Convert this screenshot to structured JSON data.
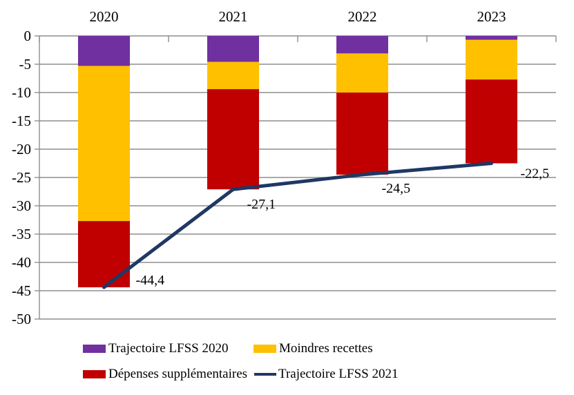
{
  "chart_data": {
    "type": "bar",
    "stacked": true,
    "orientation": "vertical",
    "categories": [
      "2020",
      "2021",
      "2022",
      "2023"
    ],
    "series": [
      {
        "name": "Trajectoire LFSS 2020",
        "type": "bar",
        "color": "#7030A0",
        "values": [
          -5.3,
          -4.6,
          -3.1,
          -0.7
        ]
      },
      {
        "name": "Moindres recettes",
        "type": "bar",
        "color": "#FFC000",
        "values": [
          -27.4,
          -4.8,
          -6.9,
          -7.0
        ]
      },
      {
        "name": "Dépenses supplémentaires",
        "type": "bar",
        "color": "#C00000",
        "values": [
          -11.7,
          -17.7,
          -14.5,
          -14.8
        ]
      },
      {
        "name": "Trajectoire LFSS 2021",
        "type": "line",
        "color": "#1F3864",
        "values": [
          -44.4,
          -27.1,
          -24.5,
          -22.5
        ],
        "point_labels": [
          "-44,4",
          "-27,1",
          "-24,5",
          "-22,5"
        ]
      }
    ],
    "bar_totals": [
      -44.4,
      -27.1,
      -24.5,
      -22.5
    ],
    "title": "",
    "xlabel": "",
    "ylabel": "",
    "ylim": [
      -50,
      0
    ],
    "ytick_step": 5,
    "ytick_labels": [
      "0",
      "-5",
      "-10",
      "-15",
      "-20",
      "-25",
      "-30",
      "-35",
      "-40",
      "-45",
      "-50"
    ],
    "grid": true,
    "gridline_color": "#8E8E8E",
    "axis_color": "#8E8E8E",
    "text_color": "#000000",
    "legend_position": "bottom"
  },
  "legend": {
    "items": [
      {
        "label": "Trajectoire LFSS 2020",
        "color": "#7030A0",
        "swatch": "rect"
      },
      {
        "label": "Moindres recettes",
        "color": "#FFC000",
        "swatch": "rect"
      },
      {
        "label": "Dépenses supplémentaires",
        "color": "#C00000",
        "swatch": "rect"
      },
      {
        "label": "Trajectoire LFSS 2021",
        "color": "#1F3864",
        "swatch": "line"
      }
    ]
  }
}
